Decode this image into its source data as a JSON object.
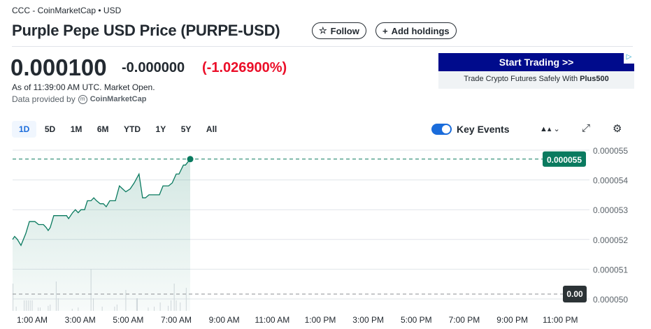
{
  "breadcrumb": "CCC - CoinMarketCap • USD",
  "title": "Purple Pepe USD Price (PURPE-USD)",
  "follow_label": "Follow",
  "add_holdings_label": "Add holdings",
  "quote": {
    "price": "0.000100",
    "change": "-0.000000",
    "change_pct": "(-1.026900%)",
    "as_of": "As of 11:39:00 AM UTC. Market Open.",
    "provided_by": "Data provided by",
    "provider": "CoinMarketCap"
  },
  "ad": {
    "cta": "Start Trading >>",
    "text": "Trade Crypto Futures Safely With ",
    "brand": "Plus500"
  },
  "ranges": [
    "1D",
    "5D",
    "1M",
    "6M",
    "YTD",
    "1Y",
    "5Y",
    "All"
  ],
  "active_range": "1D",
  "key_events": {
    "label": "Key Events",
    "enabled": true
  },
  "colors": {
    "line": "#0a7a5f",
    "negative": "#eb0f29",
    "accent": "#1a6cdb",
    "ad": "#000b8c"
  },
  "chart_data": {
    "type": "area",
    "x_ticks": [
      "1:00 AM",
      "3:00 AM",
      "5:00 AM",
      "7:00 AM",
      "9:00 AM",
      "11:00 AM",
      "1:00 PM",
      "3:00 PM",
      "5:00 PM",
      "7:00 PM",
      "9:00 PM",
      "11:00 PM"
    ],
    "y_ticks": [
      "0.000055",
      "0.000054",
      "0.000053",
      "0.000052",
      "0.000051",
      "0.000050"
    ],
    "ylim": [
      5e-05,
      5.5e-05
    ],
    "xlim": [
      "00:00",
      "24:00"
    ],
    "grid": true,
    "last_price_label": "0.000055",
    "volume_label": "0.00",
    "points": [
      [
        "00:11",
        5.2e-05
      ],
      [
        "00:16",
        5.21e-05
      ],
      [
        "00:23",
        5.2e-05
      ],
      [
        "00:32",
        5.18e-05
      ],
      [
        "00:44",
        5.22e-05
      ],
      [
        "00:53",
        5.26e-05
      ],
      [
        "01:07",
        5.26e-05
      ],
      [
        "01:16",
        5.25e-05
      ],
      [
        "01:28",
        5.25e-05
      ],
      [
        "01:35",
        5.24e-05
      ],
      [
        "01:40",
        5.23e-05
      ],
      [
        "01:45",
        5.24e-05
      ],
      [
        "01:54",
        5.28e-05
      ],
      [
        "02:03",
        5.28e-05
      ],
      [
        "02:11",
        5.28e-05
      ],
      [
        "02:26",
        5.28e-05
      ],
      [
        "02:31",
        5.27e-05
      ],
      [
        "02:41",
        5.29e-05
      ],
      [
        "02:48",
        5.3e-05
      ],
      [
        "02:55",
        5.29e-05
      ],
      [
        "03:02",
        5.3e-05
      ],
      [
        "03:11",
        5.3e-05
      ],
      [
        "03:18",
        5.33e-05
      ],
      [
        "03:27",
        5.33e-05
      ],
      [
        "03:34",
        5.34e-05
      ],
      [
        "03:41",
        5.33e-05
      ],
      [
        "03:50",
        5.32e-05
      ],
      [
        "03:58",
        5.32e-05
      ],
      [
        "04:05",
        5.31e-05
      ],
      [
        "04:14",
        5.33e-05
      ],
      [
        "04:23",
        5.33e-05
      ],
      [
        "04:28",
        5.33e-05
      ],
      [
        "04:38",
        5.38e-05
      ],
      [
        "04:46",
        5.37e-05
      ],
      [
        "04:54",
        5.36e-05
      ],
      [
        "05:05",
        5.37e-05
      ],
      [
        "05:15",
        5.39e-05
      ],
      [
        "05:27",
        5.42e-05
      ],
      [
        "05:36",
        5.34e-05
      ],
      [
        "05:43",
        5.34e-05
      ],
      [
        "05:52",
        5.35e-05
      ],
      [
        "06:04",
        5.35e-05
      ],
      [
        "06:09",
        5.35e-05
      ],
      [
        "06:18",
        5.35e-05
      ],
      [
        "06:27",
        5.38e-05
      ],
      [
        "06:35",
        5.38e-05
      ],
      [
        "06:41",
        5.38e-05
      ],
      [
        "06:50",
        5.39e-05
      ],
      [
        "07:00",
        5.42e-05
      ],
      [
        "07:07",
        5.42e-05
      ],
      [
        "07:18",
        5.45e-05
      ],
      [
        "07:23",
        5.45e-05
      ],
      [
        "07:35",
        5.47e-05
      ]
    ],
    "volume": [
      [
        "00:12",
        0.65
      ],
      [
        "00:20",
        0.1
      ],
      [
        "00:40",
        0.25
      ],
      [
        "00:45",
        0.25
      ],
      [
        "00:50",
        0.25
      ],
      [
        "00:55",
        0.25
      ],
      [
        "01:00",
        0.25
      ],
      [
        "01:15",
        0.08
      ],
      [
        "01:20",
        0.08
      ],
      [
        "01:40",
        0.12
      ],
      [
        "01:45",
        0.15
      ],
      [
        "02:00",
        0.7
      ],
      [
        "02:05",
        0.3
      ],
      [
        "02:40",
        0.05
      ],
      [
        "02:55",
        0.08
      ],
      [
        "03:27",
        1.0
      ],
      [
        "03:33",
        0.3
      ],
      [
        "03:55",
        0.1
      ],
      [
        "04:26",
        0.1
      ],
      [
        "04:32",
        0.15
      ],
      [
        "04:54",
        0.5
      ],
      [
        "05:21",
        0.3
      ],
      [
        "05:23",
        0.3
      ],
      [
        "05:50",
        0.08
      ],
      [
        "06:05",
        0.1
      ],
      [
        "06:20",
        0.2
      ],
      [
        "06:40",
        0.12
      ],
      [
        "06:47",
        0.25
      ],
      [
        "06:55",
        0.65
      ],
      [
        "07:00",
        0.25
      ],
      [
        "07:10",
        0.2
      ],
      [
        "07:25",
        0.55
      ]
    ]
  }
}
